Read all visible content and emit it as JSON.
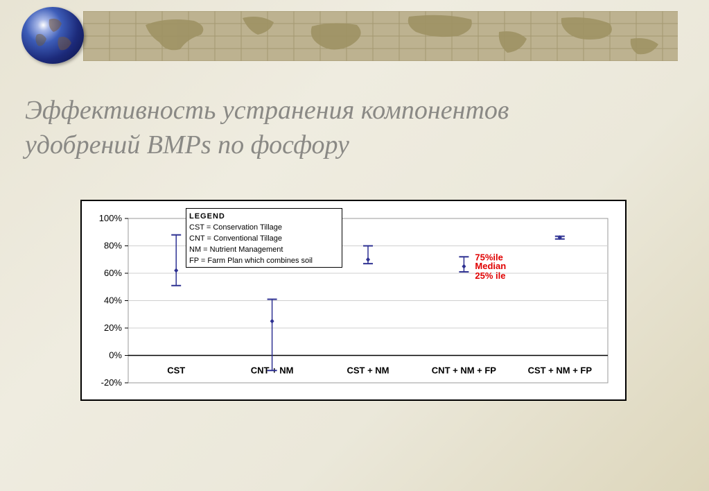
{
  "slide": {
    "title_lines": [
      "Эффективность устранения компонентов",
      "удобрений BMPs по фосфору"
    ]
  },
  "colors": {
    "accent": "#2e3192",
    "annotation": "#e00000",
    "banner": "#bdb290",
    "title": "#8a8985"
  },
  "icons": {
    "globe": "globe-icon",
    "banner": "world-map-banner"
  },
  "chart_data": {
    "type": "box",
    "categories": [
      "CST",
      "CNT + NM",
      "CST + NM",
      "CNT + NM + FP",
      "CST + NM + FP"
    ],
    "series": [
      {
        "name": "75%ile",
        "values": [
          88,
          41,
          80,
          72,
          87
        ]
      },
      {
        "name": "Median",
        "values": [
          62,
          25,
          70,
          65,
          86
        ]
      },
      {
        "name": "25% ile",
        "values": [
          51,
          -11,
          67,
          61,
          85
        ]
      }
    ],
    "ylim": [
      -20,
      100
    ],
    "yticks": [
      "100%",
      "80%",
      "60%",
      "40%",
      "20%",
      "0%",
      "-20%"
    ],
    "ytick_values": [
      100,
      80,
      60,
      40,
      20,
      0,
      -20
    ],
    "grid": true,
    "legend": {
      "title": "LEGEND",
      "entries": [
        "CST  =  Conservation Tillage",
        "CNT  =  Conventional Tillage",
        "NM   =  Nutrient Management",
        "FP    =  Farm Plan which combines soil"
      ],
      "placement": "top-left"
    },
    "annotations": [
      "75%ile",
      "Median",
      "25% ile"
    ]
  }
}
